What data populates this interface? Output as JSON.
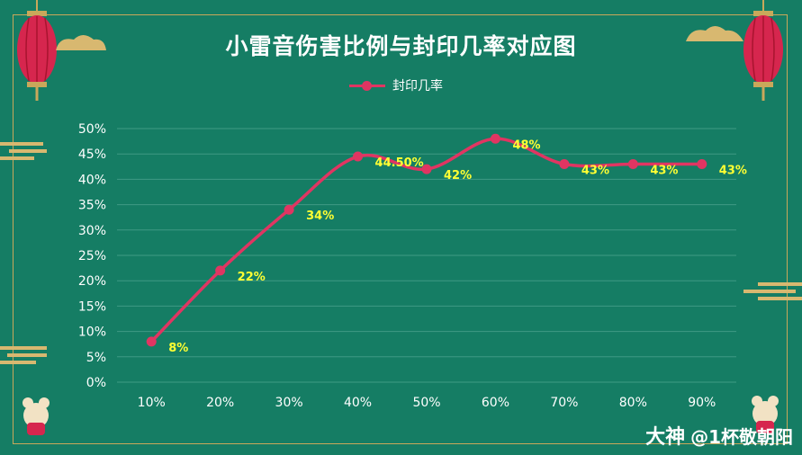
{
  "title": "小雷音伤害比例与封印几率对应图",
  "legend_label": "封印几率",
  "watermark": {
    "logo_text": "大神",
    "handle": "@1杯敬朝阳"
  },
  "colors": {
    "background": "#157d64",
    "series_line": "#e03562",
    "data_label": "#ffff33",
    "gridline": "#3f9a84",
    "border": "#c9a85a"
  },
  "chart_data": {
    "type": "line",
    "categories": [
      "10%",
      "20%",
      "30%",
      "40%",
      "50%",
      "60%",
      "70%",
      "80%",
      "90%"
    ],
    "series": [
      {
        "name": "封印几率",
        "values": [
          8,
          22,
          34,
          44.5,
          42,
          48,
          43,
          43,
          43
        ],
        "data_labels": [
          "8%",
          "22%",
          "34%",
          "44.50%",
          "42%",
          "48%",
          "43%",
          "43%",
          "43%"
        ]
      }
    ],
    "ylim": [
      0,
      50
    ],
    "y_ticks": [
      "0%",
      "5%",
      "10%",
      "15%",
      "20%",
      "25%",
      "30%",
      "35%",
      "40%",
      "45%",
      "50%"
    ],
    "grid": true,
    "smooth": true,
    "legend_position": "top"
  }
}
